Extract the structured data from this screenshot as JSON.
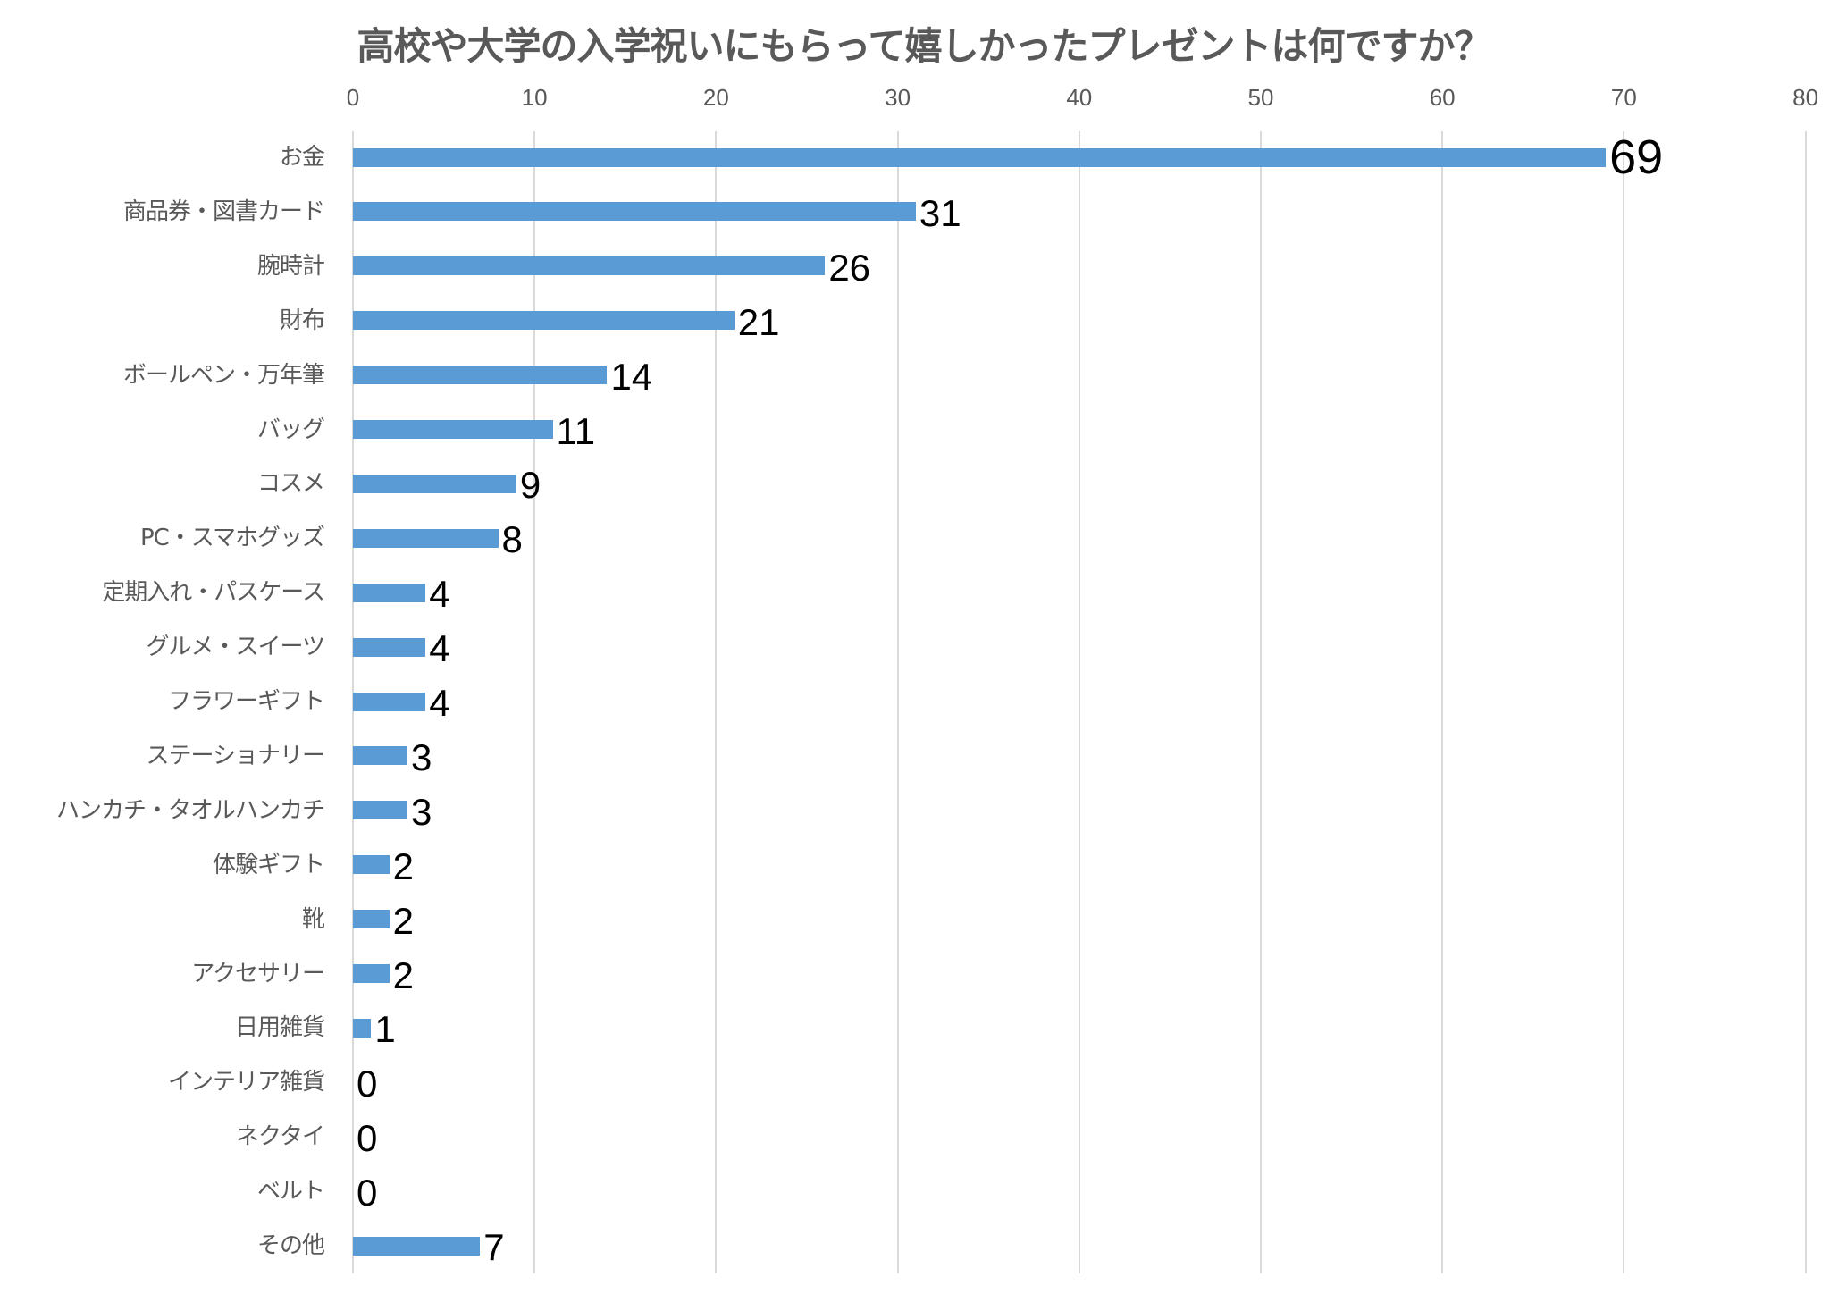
{
  "chart_data": {
    "type": "bar",
    "orientation": "horizontal",
    "title": "高校や大学の入学祝いにもらって嬉しかったプレゼントは何ですか？",
    "xlabel": "",
    "ylabel": "",
    "xlim": [
      0,
      80
    ],
    "x_ticks": [
      "0",
      "10",
      "20",
      "30",
      "40",
      "50",
      "60",
      "70",
      "80"
    ],
    "x_axis_position": "top",
    "grid": true,
    "legend": null,
    "bar_color": "#5B9BD5",
    "categories": [
      "お金",
      "商品券・図書カード",
      "腕時計",
      "財布",
      "ボールペン・万年筆",
      "バッグ",
      "コスメ",
      "PC・スマホグッズ",
      "定期入れ・パスケース",
      "グルメ・スイーツ",
      "フラワーギフト",
      "ステーショナリー",
      "ハンカチ・タオルハンカチ",
      "体験ギフト",
      "靴",
      "アクセサリー",
      "日用雑貨",
      "インテリア雑貨",
      "ネクタイ",
      "ベルト",
      "その他"
    ],
    "values": [
      69,
      31,
      26,
      21,
      14,
      11,
      9,
      8,
      4,
      4,
      4,
      3,
      3,
      2,
      2,
      2,
      1,
      0,
      0,
      0,
      7
    ],
    "data_labels": [
      "69",
      "31",
      "26",
      "21",
      "14",
      "11",
      "9",
      "8",
      "4",
      "4",
      "4",
      "3",
      "3",
      "2",
      "2",
      "2",
      "1",
      "0",
      "0",
      "0",
      "7"
    ]
  },
  "colors": {
    "bar": "#5B9BD5",
    "grid": "#D9D9D9",
    "axis_text": "#595959",
    "title_text": "#595959",
    "data_label_text": "#000000"
  }
}
